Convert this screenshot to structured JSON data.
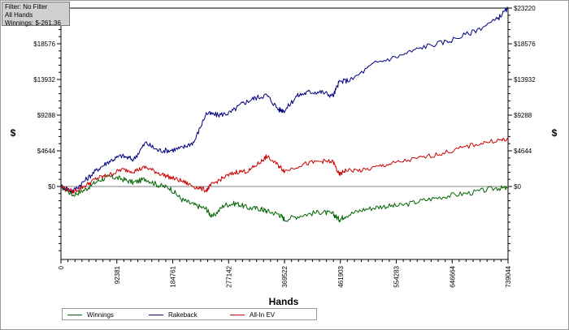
{
  "filter_box": {
    "line1": "Filter: No Filter",
    "line2": "All Hands",
    "line3": "Winnings: $-261.36"
  },
  "chart_data": {
    "type": "line",
    "title": "",
    "xlabel": "Hands",
    "ylabel": "$",
    "xlim": [
      0,
      739044
    ],
    "ylim": [
      -9500,
      23220
    ],
    "x_ticks": [
      "0",
      "92381",
      "184761",
      "277142",
      "369522",
      "461903",
      "554283",
      "646664",
      "739044"
    ],
    "y_ticks": [
      "$0",
      "$4644",
      "$9288",
      "$13932",
      "$18576",
      "$23220"
    ],
    "y_tick_values": [
      0,
      4644,
      9288,
      13932,
      18576,
      23220
    ],
    "grid": false,
    "legend_position": "bottom-left",
    "series": [
      {
        "name": "Winnings",
        "color": "#006400",
        "x": [
          0,
          20000,
          40000,
          60000,
          80000,
          100000,
          120000,
          140000,
          160000,
          180000,
          200000,
          220000,
          240000,
          250000,
          270000,
          290000,
          310000,
          330000,
          340000,
          360000,
          370000,
          400000,
          430000,
          450000,
          460000,
          470000,
          500000,
          530000,
          560000,
          600000,
          640000,
          680000,
          720000,
          739044
        ],
        "y": [
          0,
          -1100,
          -400,
          700,
          1300,
          1000,
          500,
          1000,
          200,
          -200,
          -1700,
          -2400,
          -2900,
          -4000,
          -2400,
          -2200,
          -2800,
          -2900,
          -3200,
          -3600,
          -4300,
          -3700,
          -3300,
          -3600,
          -4300,
          -3800,
          -3000,
          -2600,
          -2500,
          -1800,
          -1200,
          -800,
          -200,
          -261
        ]
      },
      {
        "name": "Rakeback",
        "color": "#000080",
        "x": [
          0,
          20000,
          40000,
          60000,
          80000,
          100000,
          120000,
          140000,
          160000,
          180000,
          200000,
          220000,
          240000,
          260000,
          280000,
          300000,
          320000,
          340000,
          360000,
          370000,
          390000,
          410000,
          430000,
          450000,
          460000,
          480000,
          520000,
          560000,
          600000,
          640000,
          680000,
          720000,
          739044
        ],
        "y": [
          0,
          -600,
          800,
          2200,
          3300,
          4000,
          3500,
          5700,
          4700,
          4700,
          5000,
          5800,
          9500,
          9300,
          9600,
          10800,
          11500,
          11900,
          10000,
          9900,
          11800,
          12300,
          12300,
          11800,
          13600,
          13900,
          16100,
          17000,
          18200,
          18900,
          20100,
          21700,
          23220
        ]
      },
      {
        "name": "All-In EV",
        "color": "#cc0000",
        "x": [
          0,
          20000,
          40000,
          60000,
          80000,
          100000,
          120000,
          140000,
          160000,
          180000,
          200000,
          220000,
          240000,
          250000,
          270000,
          290000,
          310000,
          330000,
          340000,
          360000,
          370000,
          400000,
          430000,
          450000,
          460000,
          470000,
          500000,
          530000,
          560000,
          600000,
          640000,
          680000,
          720000,
          739044
        ],
        "y": [
          0,
          -700,
          100,
          1100,
          1500,
          2200,
          2000,
          2500,
          1800,
          1200,
          700,
          0,
          -500,
          300,
          1200,
          1900,
          2000,
          3200,
          3900,
          2700,
          2000,
          2900,
          3300,
          3200,
          1500,
          2100,
          2100,
          2700,
          3200,
          3800,
          4500,
          5400,
          6000,
          6100
        ]
      }
    ]
  },
  "legend": {
    "items": [
      "Winnings",
      "Rakeback",
      "All-In EV"
    ]
  }
}
